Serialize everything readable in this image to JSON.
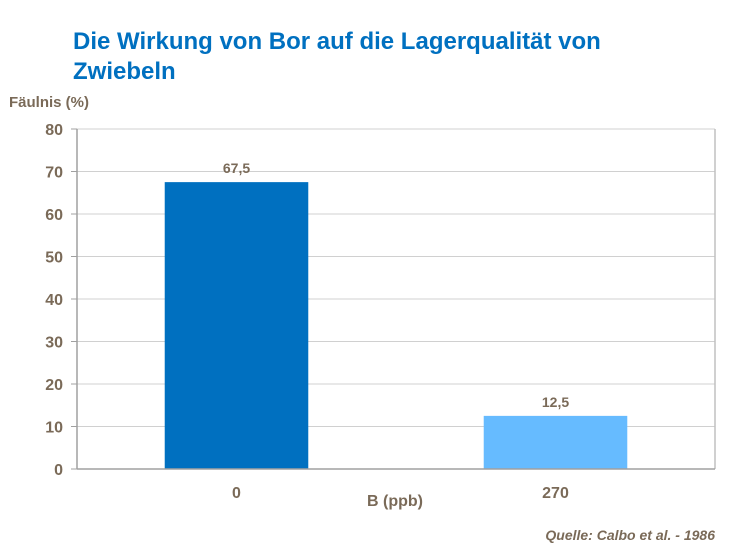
{
  "chart_data": {
    "type": "bar",
    "title": "Die Wirkung von Bor auf die Lagerqualität von Zwiebeln",
    "xlabel": "B (ppb)",
    "ylabel": "Fäulnis (%)",
    "categories": [
      "0",
      "270"
    ],
    "values": [
      67.5,
      12.5
    ],
    "data_labels": [
      "67,5",
      "12,5"
    ],
    "bar_colors": [
      "#0070c0",
      "#66bbff"
    ],
    "ylim": [
      0,
      80
    ],
    "yticks": [
      "0",
      "10",
      "20",
      "30",
      "40",
      "50",
      "60",
      "70",
      "80"
    ],
    "grid": true,
    "legend": "none"
  },
  "source": "Quelle: Calbo et al. - 1986"
}
